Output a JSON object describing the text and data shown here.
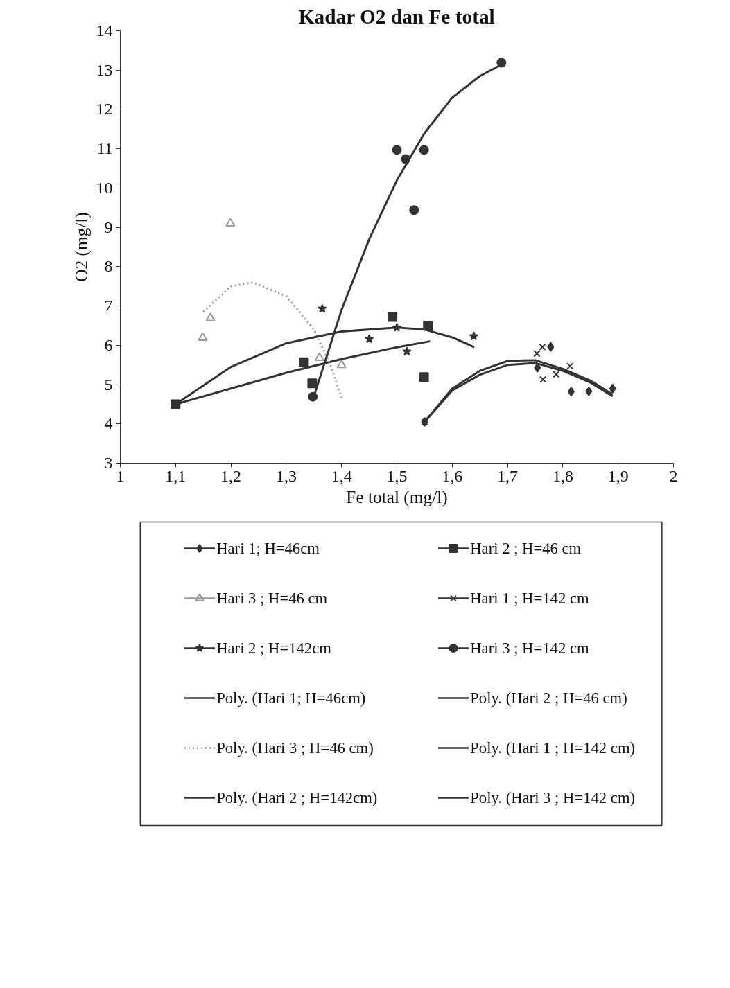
{
  "chart_data": {
    "type": "scatter",
    "title": "Kadar O2 dan Fe total",
    "xlabel": "Fe total (mg/l)",
    "ylabel": "O2 (mg/l)",
    "xlim": [
      1,
      2
    ],
    "ylim": [
      3,
      14
    ],
    "xticks": [
      1,
      {
        "value": 1.1,
        "label": "1,1"
      },
      {
        "value": 1.2,
        "label": "1,2"
      },
      {
        "value": 1.3,
        "label": "1,3"
      },
      {
        "value": 1.4,
        "label": "1,4"
      },
      {
        "value": 1.5,
        "label": "1,5"
      },
      {
        "value": 1.6,
        "label": "1,6"
      },
      {
        "value": 1.7,
        "label": "1,7"
      },
      {
        "value": 1.8,
        "label": "1,8"
      },
      {
        "value": 1.9,
        "label": "1,9"
      },
      2
    ],
    "yticks": [
      3,
      4,
      5,
      6,
      7,
      8,
      9,
      10,
      11,
      12,
      13,
      14
    ],
    "grid": false,
    "legend": "bottom",
    "series": [
      {
        "name": "Hari 1; H=46cm",
        "marker": "diamond",
        "color": "#333333",
        "x": [
          1.55,
          1.754,
          1.778,
          1.815,
          1.847,
          1.89
        ],
        "values": [
          4.05,
          5.43,
          5.96,
          4.82,
          4.83,
          4.9
        ]
      },
      {
        "name": "Hari 2 ; H=46 cm",
        "marker": "square",
        "color": "#333333",
        "x": [
          1.1,
          1.332,
          1.347,
          1.492,
          1.556,
          1.549
        ],
        "values": [
          4.5,
          5.57,
          5.03,
          6.72,
          6.49,
          5.19
        ]
      },
      {
        "name": "Hari 3 ; H=46 cm",
        "marker": "triangle",
        "color": "#999999",
        "x": [
          1.149,
          1.163,
          1.199,
          1.36,
          1.4
        ],
        "values": [
          6.19,
          6.69,
          9.1,
          5.68,
          5.5
        ]
      },
      {
        "name": "Hari 1 ; H=142 cm",
        "marker": "cross",
        "color": "#333333",
        "x": [
          1.55,
          1.753,
          1.763,
          1.764,
          1.788,
          1.813
        ],
        "values": [
          4.05,
          5.79,
          5.96,
          5.13,
          5.26,
          5.47
        ]
      },
      {
        "name": "Hari 2 ; H=142cm",
        "marker": "star",
        "color": "#333333",
        "x": [
          1.365,
          1.45,
          1.5,
          1.518,
          1.639
        ],
        "values": [
          6.93,
          6.16,
          6.45,
          5.84,
          6.23
        ]
      },
      {
        "name": "Hari 3 ; H=142 cm",
        "marker": "circle",
        "color": "#333333",
        "x": [
          1.348,
          1.5,
          1.516,
          1.531,
          1.549,
          1.689
        ],
        "values": [
          4.69,
          10.97,
          10.74,
          9.44,
          10.97,
          13.19
        ]
      },
      {
        "name": "Poly. (Hari 1; H=46cm)",
        "type": "line",
        "line_style": "solid",
        "color": "#333333",
        "x": [
          1.55,
          1.6,
          1.65,
          1.7,
          1.75,
          1.8,
          1.85,
          1.89
        ],
        "values": [
          4.05,
          4.85,
          5.25,
          5.5,
          5.55,
          5.35,
          5.05,
          4.7
        ]
      },
      {
        "name": "Poly. (Hari 2 ; H=46 cm)",
        "type": "line",
        "line_style": "solid",
        "color": "#333333",
        "x": [
          1.1,
          1.2,
          1.3,
          1.4,
          1.5,
          1.56
        ],
        "values": [
          4.5,
          4.9,
          5.3,
          5.65,
          5.95,
          6.1
        ]
      },
      {
        "name": "Poly. (Hari 3 ; H=46 cm)",
        "type": "line",
        "line_style": "dotted",
        "color": "#999999",
        "x": [
          1.15,
          1.2,
          1.24,
          1.3,
          1.35,
          1.38,
          1.4
        ],
        "values": [
          6.85,
          7.5,
          7.6,
          7.25,
          6.4,
          5.5,
          4.65
        ]
      },
      {
        "name": "Poly. (Hari 1 ; H=142 cm)",
        "type": "line",
        "line_style": "solid",
        "color": "#333333",
        "x": [
          1.55,
          1.6,
          1.65,
          1.7,
          1.75,
          1.8,
          1.85,
          1.89
        ],
        "values": [
          4.05,
          4.9,
          5.35,
          5.6,
          5.62,
          5.4,
          5.1,
          4.75
        ]
      },
      {
        "name": "Poly. (Hari 2 ; H=142cm)",
        "type": "line",
        "line_style": "solid",
        "color": "#333333",
        "x": [
          1.1,
          1.2,
          1.3,
          1.4,
          1.5,
          1.55,
          1.6,
          1.64
        ],
        "values": [
          4.5,
          5.45,
          6.05,
          6.35,
          6.45,
          6.4,
          6.2,
          5.95
        ]
      },
      {
        "name": "Poly. (Hari 3 ; H=142 cm)",
        "type": "line",
        "line_style": "solid",
        "color": "#333333",
        "x": [
          1.35,
          1.4,
          1.45,
          1.5,
          1.55,
          1.6,
          1.65,
          1.69
        ],
        "values": [
          4.7,
          6.9,
          8.7,
          10.2,
          11.4,
          12.3,
          12.85,
          13.15
        ]
      }
    ]
  }
}
